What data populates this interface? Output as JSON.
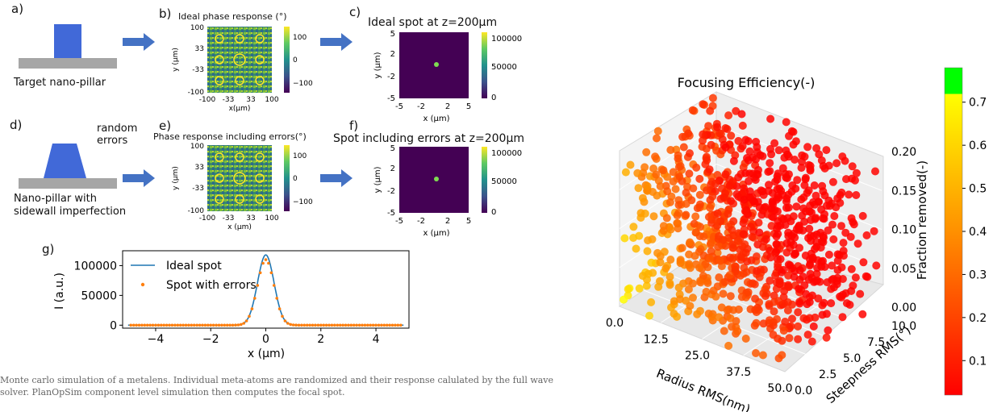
{
  "panels": {
    "a": {
      "letter": "a)",
      "caption": "Target nano-pillar"
    },
    "b": {
      "letter": "b)",
      "title": "Ideal phase response (°)"
    },
    "c": {
      "letter": "c)",
      "title": "Ideal spot at z=200μm"
    },
    "d": {
      "letter": "d)",
      "caption_line1": "Nano-pillar with",
      "caption_line2": "sidewall imperfection",
      "note_line1": "random",
      "note_line2": "errors"
    },
    "e": {
      "letter": "e)",
      "title": "Phase response including errors(°)"
    },
    "f": {
      "letter": "f)",
      "title": "Spot including errors at z=200μm"
    },
    "g": {
      "letter": "g)"
    }
  },
  "phase_axes": {
    "y_ticks": [
      "100",
      "33",
      "-33",
      "-100"
    ],
    "x_ticks": [
      "-100",
      "-33",
      "33",
      "100"
    ],
    "x_label": "x(μm)",
    "x_label_e": "x (μm)",
    "y_label": "y (μm)",
    "colorbar_ticks": [
      "100",
      "0",
      "−100"
    ]
  },
  "spot_axes": {
    "y_ticks": [
      "5",
      "2",
      "-2",
      "-5"
    ],
    "x_ticks": [
      "-5",
      "-2",
      "2",
      "5"
    ],
    "x_label": "x (μm)",
    "y_label": "y (μm)",
    "colorbar_ticks": [
      "100000",
      "50000",
      "0"
    ]
  },
  "colors": {
    "arrow": "#4472c4",
    "pillar": "#4169d8",
    "substrate": "#a6a6a6",
    "viridis_dark": "#440154",
    "ideal_line": "#1f77b4",
    "error_dots": "#ff7f0e"
  },
  "chart_data": [
    {
      "type": "line",
      "panel": "g",
      "xlabel": "x (μm)",
      "ylabel": "I (a.u.)",
      "xlim": [
        -5.2,
        5.2
      ],
      "ylim": [
        -5000,
        125000
      ],
      "x_ticks": [
        -4,
        -2,
        0,
        2,
        4
      ],
      "x_tick_labels": [
        "−4",
        "−2",
        "0",
        "2",
        "4"
      ],
      "y_ticks": [
        0,
        50000,
        100000
      ],
      "y_tick_labels": [
        "0",
        "50000",
        "100000"
      ],
      "legend": "top-left",
      "series": [
        {
          "name": "Ideal spot",
          "style": "line",
          "peak": 118000,
          "center": 0,
          "width": 0.3
        },
        {
          "name": "Spot with errors",
          "style": "dots",
          "x_start": -4.9,
          "x_end": 4.9,
          "x_step": 0.1,
          "peak": 110000,
          "center": 0,
          "width": 0.3
        }
      ]
    },
    {
      "type": "scatter",
      "panel": "3d",
      "title": "Focusing Efficiency(-)",
      "xlabel": "Radius RMS(nm)",
      "ylabel": "Steepness RMS(°)",
      "zlabel": "Fraction removed(-)",
      "xlim": [
        0,
        50
      ],
      "ylim": [
        0,
        10
      ],
      "zlim": [
        0,
        0.2
      ],
      "x_tick_labels": [
        "0.0",
        "12.5",
        "25.0",
        "37.5",
        "50.0"
      ],
      "y_tick_labels": [
        "0.0",
        "2.5",
        "5.0",
        "7.5",
        "10.0"
      ],
      "z_tick_labels": [
        "0.00",
        "0.05",
        "0.10",
        "0.15",
        "0.20"
      ],
      "colorbar": {
        "min": 0.02,
        "max": 0.78,
        "ticks": [
          0.1,
          0.2,
          0.3,
          0.4,
          0.5,
          0.6,
          0.7
        ],
        "tick_labels": [
          "0.1",
          "0.2",
          "0.3",
          "0.4",
          "0.5",
          "0.6",
          "0.7"
        ],
        "green_above": 0.72
      },
      "n_points": 900
    }
  ],
  "caption": "Monte carlo simulation of a metalens. Individual meta-atoms are randomized and their response calulated by the full wave solver. PlanOpSim component level simulation then computes the focal spot."
}
